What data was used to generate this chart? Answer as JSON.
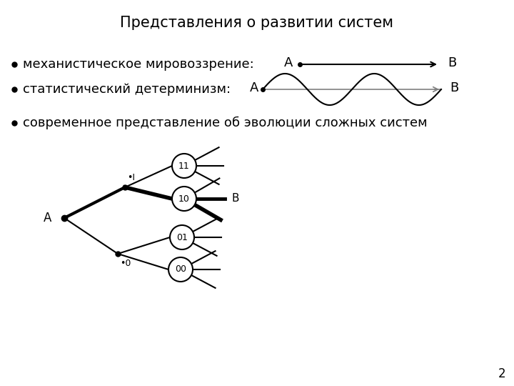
{
  "title": "Представления о развитии систем",
  "title_fontsize": 15,
  "bg_color": "#ffffff",
  "text_color": "#000000",
  "bullet1_text": "механистическое мировоззрение:",
  "bullet2_text": "статистический детерминизм:",
  "bullet3_text": "современное представление об эволюции сложных систем",
  "label_A": "A",
  "label_B": "B",
  "node_labels": [
    "11",
    "10",
    "01",
    "00"
  ],
  "page_number": "2",
  "font_size_main": 13,
  "font_size_label": 12
}
